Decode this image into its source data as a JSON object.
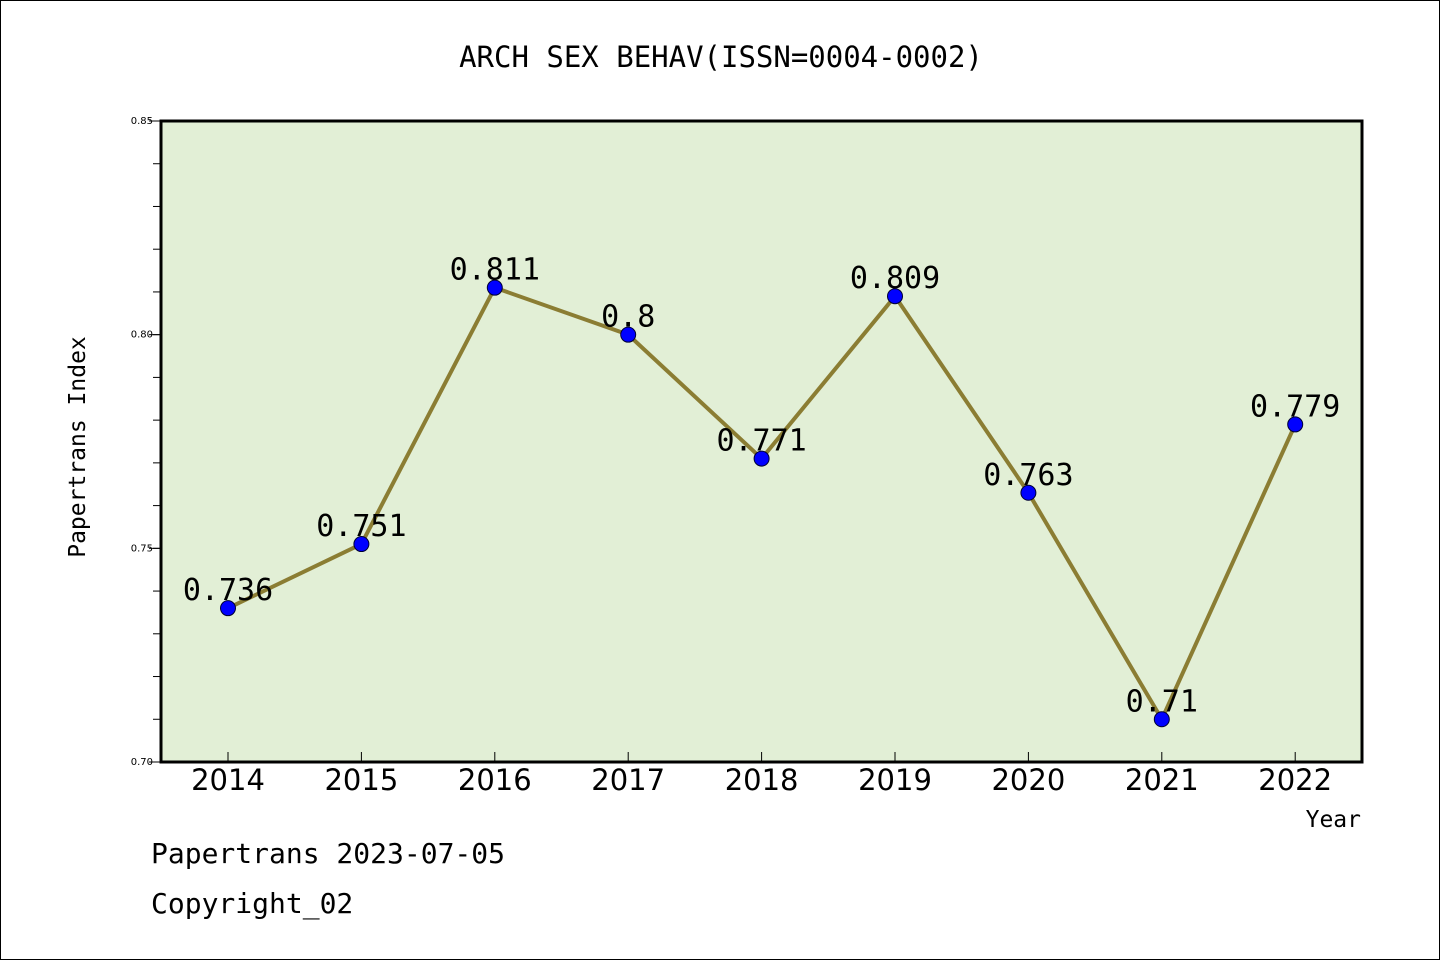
{
  "chart_data": {
    "type": "line",
    "title": "ARCH SEX BEHAV(ISSN=0004-0002)",
    "xlabel": "Year",
    "ylabel": "Papertrans Index",
    "categories": [
      "2014",
      "2015",
      "2016",
      "2017",
      "2018",
      "2019",
      "2020",
      "2021",
      "2022"
    ],
    "values": [
      0.736,
      0.751,
      0.811,
      0.8,
      0.771,
      0.809,
      0.763,
      0.71,
      0.779
    ],
    "data_labels": [
      "0.736",
      "0.751",
      "0.811",
      "0.8",
      "0.771",
      "0.809",
      "0.763",
      "0.71",
      "0.779"
    ],
    "ylim": [
      0.7,
      0.85
    ],
    "yticks": [
      0.7,
      0.75,
      0.8,
      0.85
    ],
    "ytick_labels": [
      "0.70",
      "0.75",
      "0.80",
      "0.85"
    ],
    "grid": false,
    "line_color": "#8b7d33",
    "marker_color": "#0000ff",
    "plot_background": "#e2efd6"
  },
  "footer": {
    "line1": "Papertrans 2023-07-05",
    "line2": "Copyright_02"
  }
}
